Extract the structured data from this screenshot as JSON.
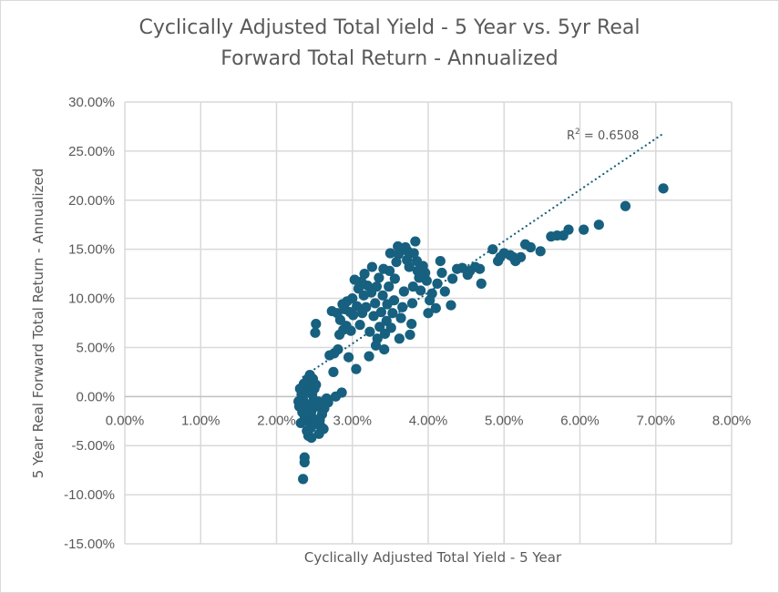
{
  "chart_data": {
    "type": "scatter",
    "title_lines": [
      "Cyclically Adjusted Total Yield - 5 Year vs. 5yr Real",
      "Forward Total Return - Annualized"
    ],
    "xlabel": "Cyclically Adjusted Total Yield - 5 Year",
    "ylabel": "5 Year Real Forward Total Return - Annualized",
    "xlim": [
      0,
      0.08
    ],
    "ylim": [
      -0.15,
      0.3
    ],
    "x_ticks": [
      0,
      0.01,
      0.02,
      0.03,
      0.04,
      0.05,
      0.06,
      0.07,
      0.08
    ],
    "x_tick_labels": [
      "0.00%",
      "1.00%",
      "2.00%",
      "3.00%",
      "4.00%",
      "5.00%",
      "6.00%",
      "7.00%",
      "8.00%"
    ],
    "y_ticks": [
      0.3,
      0.25,
      0.2,
      0.15,
      0.1,
      0.05,
      0,
      -0.05,
      -0.1,
      -0.15
    ],
    "y_tick_labels": [
      "30.00%",
      "25.00%",
      "20.00%",
      "15.00%",
      "10.00%",
      "5.00%",
      "0.00%",
      "-5.00%",
      "-10.00%",
      "-15.00%"
    ],
    "grid": true,
    "marker_color": "#17607f",
    "trendline": {
      "type": "linear",
      "slope": 5.22,
      "intercept": -0.1027,
      "x_range": [
        0.0235,
        0.071
      ],
      "style": "dotted",
      "color": "#17607f",
      "r2_label_prefix": "R",
      "r2_label_sup": "2",
      "r2_label_value": " = 0.6508"
    },
    "points": [
      [
        0.071,
        0.212
      ],
      [
        0.066,
        0.194
      ],
      [
        0.0625,
        0.175
      ],
      [
        0.0605,
        0.17
      ],
      [
        0.0585,
        0.17
      ],
      [
        0.0578,
        0.164
      ],
      [
        0.057,
        0.164
      ],
      [
        0.0562,
        0.163
      ],
      [
        0.0548,
        0.148
      ],
      [
        0.0535,
        0.152
      ],
      [
        0.0528,
        0.155
      ],
      [
        0.0522,
        0.142
      ],
      [
        0.0515,
        0.138
      ],
      [
        0.0512,
        0.142
      ],
      [
        0.0508,
        0.144
      ],
      [
        0.05,
        0.146
      ],
      [
        0.0495,
        0.142
      ],
      [
        0.0492,
        0.138
      ],
      [
        0.0485,
        0.15
      ],
      [
        0.047,
        0.115
      ],
      [
        0.0468,
        0.13
      ],
      [
        0.0462,
        0.132
      ],
      [
        0.0455,
        0.128
      ],
      [
        0.0452,
        0.124
      ],
      [
        0.0445,
        0.131
      ],
      [
        0.0438,
        0.13
      ],
      [
        0.0432,
        0.12
      ],
      [
        0.043,
        0.093
      ],
      [
        0.0422,
        0.107
      ],
      [
        0.0418,
        0.126
      ],
      [
        0.0416,
        0.138
      ],
      [
        0.0412,
        0.115
      ],
      [
        0.041,
        0.09
      ],
      [
        0.0405,
        0.105
      ],
      [
        0.0402,
        0.098
      ],
      [
        0.04,
        0.085
      ],
      [
        0.0398,
        0.118
      ],
      [
        0.0396,
        0.126
      ],
      [
        0.0393,
        0.133
      ],
      [
        0.039,
        0.108
      ],
      [
        0.0388,
        0.121
      ],
      [
        0.0386,
        0.128
      ],
      [
        0.0385,
        0.138
      ],
      [
        0.0383,
        0.158
      ],
      [
        0.0381,
        0.146
      ],
      [
        0.038,
        0.112
      ],
      [
        0.0379,
        0.095
      ],
      [
        0.0378,
        0.074
      ],
      [
        0.0376,
        0.063
      ],
      [
        0.0375,
        0.132
      ],
      [
        0.0373,
        0.148
      ],
      [
        0.0372,
        0.139
      ],
      [
        0.037,
        0.152
      ],
      [
        0.0368,
        0.107
      ],
      [
        0.0366,
        0.091
      ],
      [
        0.0364,
        0.08
      ],
      [
        0.0362,
        0.059
      ],
      [
        0.0361,
        0.145
      ],
      [
        0.036,
        0.153
      ],
      [
        0.0358,
        0.137
      ],
      [
        0.0356,
        0.12
      ],
      [
        0.0355,
        0.098
      ],
      [
        0.0353,
        0.085
      ],
      [
        0.0351,
        0.07
      ],
      [
        0.035,
        0.146
      ],
      [
        0.0349,
        0.128
      ],
      [
        0.0348,
        0.112
      ],
      [
        0.0346,
        0.094
      ],
      [
        0.0345,
        0.077
      ],
      [
        0.0343,
        0.064
      ],
      [
        0.0342,
        0.048
      ],
      [
        0.0341,
        0.13
      ],
      [
        0.034,
        0.103
      ],
      [
        0.0338,
        0.086
      ],
      [
        0.0336,
        0.071
      ],
      [
        0.0335,
        0.121
      ],
      [
        0.0333,
        0.059
      ],
      [
        0.0332,
        0.112
      ],
      [
        0.0331,
        0.052
      ],
      [
        0.033,
        0.095
      ],
      [
        0.0328,
        0.082
      ],
      [
        0.0326,
        0.132
      ],
      [
        0.0325,
        0.106
      ],
      [
        0.0323,
        0.066
      ],
      [
        0.0322,
        0.041
      ],
      [
        0.032,
        0.113
      ],
      [
        0.0318,
        0.091
      ],
      [
        0.0316,
        0.125
      ],
      [
        0.0315,
        0.103
      ],
      [
        0.0313,
        0.085
      ],
      [
        0.0312,
        0.117
      ],
      [
        0.031,
        0.073
      ],
      [
        0.0308,
        0.11
      ],
      [
        0.0306,
        0.092
      ],
      [
        0.0305,
        0.028
      ],
      [
        0.0303,
        0.119
      ],
      [
        0.0301,
        0.083
      ],
      [
        0.03,
        0.1
      ],
      [
        0.0298,
        0.067
      ],
      [
        0.0297,
        0.086
      ],
      [
        0.0295,
        0.04
      ],
      [
        0.0293,
        0.097
      ],
      [
        0.0292,
        0.072
      ],
      [
        0.029,
        0.089
      ],
      [
        0.0288,
        0.068
      ],
      [
        0.0287,
        0.094
      ],
      [
        0.0286,
        0.004
      ],
      [
        0.0284,
        0.078
      ],
      [
        0.0283,
        0.063
      ],
      [
        0.0281,
        0.048
      ],
      [
        0.028,
        0.085
      ],
      [
        0.0278,
        0.0
      ],
      [
        0.0276,
        0.044
      ],
      [
        0.0275,
        0.025
      ],
      [
        0.0273,
        0.087
      ],
      [
        0.027,
        0.042
      ],
      [
        0.0268,
        -0.006
      ],
      [
        0.0266,
        -0.002
      ],
      [
        0.0263,
        -0.012
      ],
      [
        0.026,
        -0.018
      ],
      [
        0.0258,
        -0.03
      ],
      [
        0.0256,
        -0.038
      ],
      [
        0.0254,
        -0.01
      ],
      [
        0.0252,
        0.074
      ],
      [
        0.0251,
        0.065
      ],
      [
        0.025,
        0.008
      ],
      [
        0.0249,
        -0.004
      ],
      [
        0.0248,
        -0.022
      ],
      [
        0.0247,
        0.002
      ],
      [
        0.0246,
        -0.015
      ],
      [
        0.0245,
        -0.032
      ],
      [
        0.0244,
        0.012
      ],
      [
        0.0243,
        -0.008
      ],
      [
        0.0242,
        -0.04
      ],
      [
        0.0241,
        0.018
      ],
      [
        0.024,
        -0.025
      ],
      [
        0.0239,
        0.005
      ],
      [
        0.0238,
        -0.011
      ],
      [
        0.0237,
        -0.02
      ],
      [
        0.0237,
        -0.062
      ],
      [
        0.0237,
        -0.067
      ],
      [
        0.0236,
        0.01
      ],
      [
        0.0235,
        -0.003
      ],
      [
        0.0235,
        -0.084
      ],
      [
        0.0234,
        -0.016
      ],
      [
        0.0233,
        0.002
      ],
      [
        0.0232,
        -0.027
      ],
      [
        0.0231,
        0.008
      ],
      [
        0.023,
        -0.01
      ],
      [
        0.0229,
        -0.005
      ],
      [
        0.0246,
        -0.042
      ],
      [
        0.0248,
        0.018
      ],
      [
        0.0255,
        -0.005
      ],
      [
        0.0244,
        0.022
      ],
      [
        0.0252,
        0.012
      ],
      [
        0.0257,
        -0.024
      ],
      [
        0.0262,
        -0.033
      ],
      [
        0.024,
        -0.035
      ],
      [
        0.025,
        -0.028
      ],
      [
        0.0236,
        0.013
      ]
    ]
  }
}
